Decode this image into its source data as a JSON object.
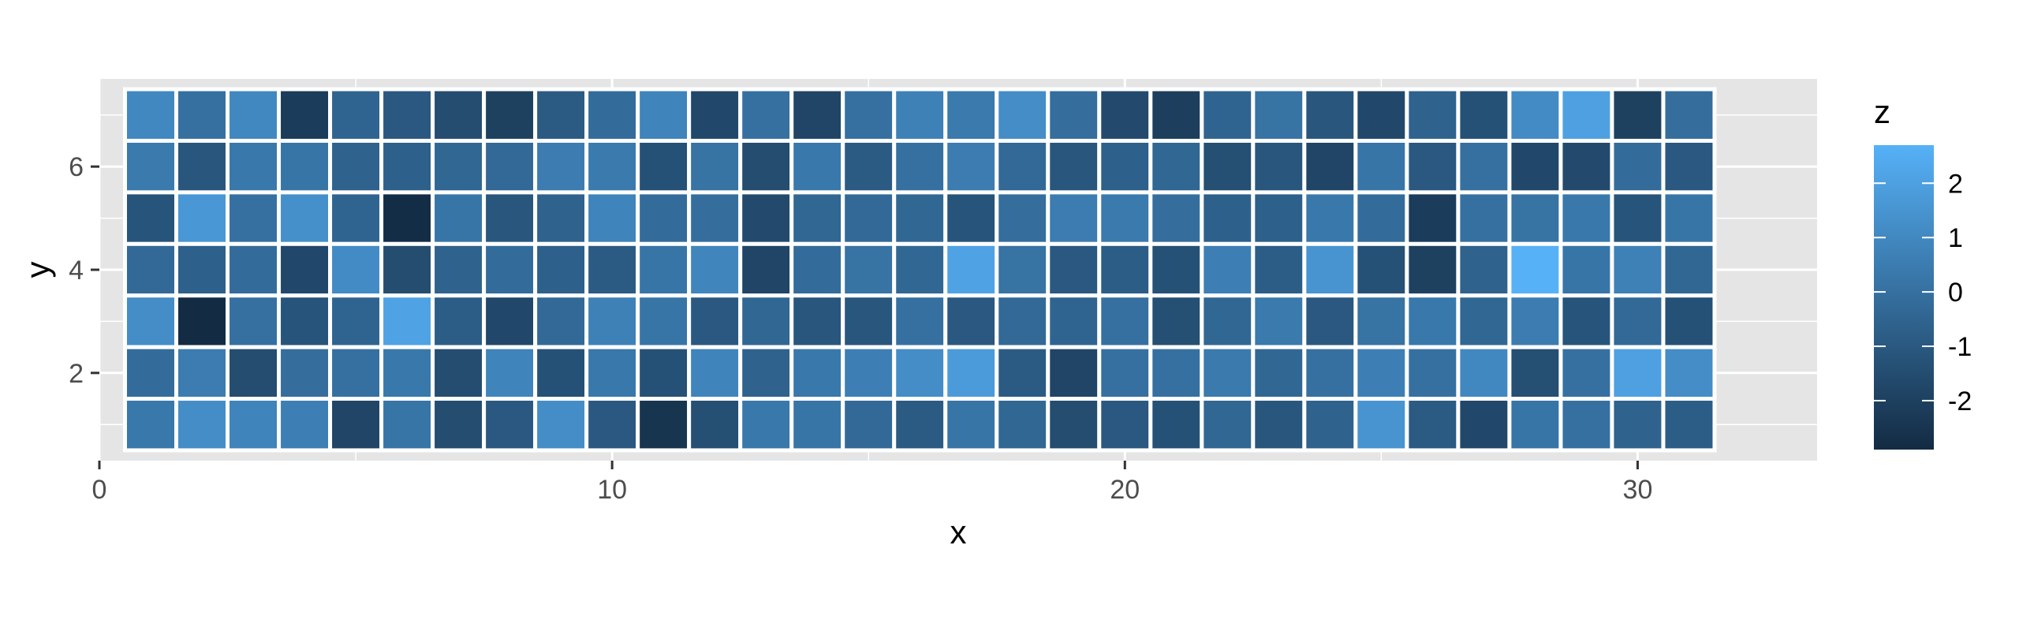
{
  "chart_data": {
    "type": "heatmap",
    "xlabel": "x",
    "ylabel": "y",
    "xlim": [
      0,
      33.5
    ],
    "ylim": [
      0.3,
      7.7
    ],
    "x_ticks": [
      0,
      10,
      20,
      30
    ],
    "y_ticks": [
      2,
      4,
      6
    ],
    "x_tick_labels": [
      "0",
      "10",
      "20",
      "30"
    ],
    "y_tick_labels": [
      "2",
      "4",
      "6"
    ],
    "x": [
      1,
      2,
      3,
      4,
      5,
      6,
      7,
      8,
      9,
      10,
      11,
      12,
      13,
      14,
      15,
      16,
      17,
      18,
      19,
      20,
      21,
      22,
      23,
      24,
      25,
      26,
      27,
      28,
      29,
      30,
      31
    ],
    "y": [
      7,
      6,
      5,
      4,
      3,
      2,
      1
    ],
    "z": [
      [
        1.0,
        0.0,
        1.0,
        -2.2,
        -0.5,
        -1.0,
        -1.5,
        -2.0,
        -0.9,
        -0.2,
        0.8,
        -1.7,
        0.0,
        -1.8,
        0.0,
        0.7,
        0.4,
        1.2,
        -0.1,
        -1.6,
        -2.1,
        -0.5,
        0.1,
        -1.1,
        -1.7,
        -0.6,
        -1.3,
        1.1,
        2.0,
        -2.0,
        -0.1
      ],
      [
        0.4,
        -1.1,
        0.3,
        0.2,
        -0.6,
        -0.7,
        -0.4,
        -0.3,
        0.5,
        0.4,
        -1.3,
        0.1,
        -1.5,
        0.3,
        -0.9,
        0.0,
        0.5,
        -0.3,
        -1.1,
        -0.7,
        -0.4,
        -1.4,
        -1.1,
        -1.8,
        0.2,
        -1.0,
        0.0,
        -1.7,
        -1.6,
        -0.2,
        -1.0
      ],
      [
        -1.2,
        1.6,
        0.0,
        1.3,
        -0.5,
        -2.8,
        0.2,
        -1.1,
        -0.6,
        0.8,
        -0.2,
        -0.1,
        -1.6,
        -0.4,
        -0.3,
        -0.4,
        -1.2,
        -0.1,
        0.5,
        0.4,
        -0.1,
        -0.7,
        -0.7,
        0.3,
        -0.2,
        -2.2,
        0.0,
        0.1,
        0.3,
        -1.2,
        0.2
      ],
      [
        -0.3,
        -0.7,
        -0.2,
        -1.7,
        1.1,
        -1.5,
        -0.6,
        -0.2,
        -0.7,
        -0.9,
        0.2,
        0.9,
        -1.8,
        -0.2,
        0.1,
        -0.4,
        2.1,
        0.1,
        -1.0,
        -0.8,
        -1.3,
        0.6,
        -0.8,
        1.5,
        -1.3,
        -2.0,
        -0.6,
        2.7,
        0.2,
        0.7,
        -0.4
      ],
      [
        1.2,
        -3.0,
        0.0,
        -1.2,
        -0.5,
        2.1,
        -0.8,
        -1.7,
        -0.3,
        0.7,
        0.2,
        -1.0,
        -0.4,
        -1.1,
        -1.1,
        0.0,
        -1.0,
        -0.3,
        -0.5,
        0.0,
        -1.4,
        -0.4,
        0.4,
        -1.0,
        0.1,
        0.3,
        -0.4,
        0.5,
        -1.2,
        -0.3,
        -1.3
      ],
      [
        -0.2,
        0.5,
        -1.5,
        -0.1,
        0.0,
        0.3,
        -1.5,
        0.8,
        -1.3,
        0.3,
        -1.3,
        0.8,
        -0.6,
        0.3,
        0.6,
        1.2,
        1.8,
        -0.9,
        -1.8,
        0.0,
        0.0,
        0.4,
        -0.4,
        0.0,
        0.6,
        0.0,
        1.0,
        -1.4,
        0.0,
        2.0,
        1.2
      ],
      [
        0.3,
        1.2,
        0.8,
        0.6,
        -1.8,
        0.2,
        -1.5,
        -1.0,
        1.2,
        -1.0,
        -2.5,
        -1.4,
        0.3,
        0.2,
        -0.3,
        -0.9,
        0.2,
        -0.4,
        -1.5,
        -1.0,
        -1.3,
        -0.4,
        -1.1,
        -0.6,
        1.5,
        -0.9,
        -1.7,
        0.2,
        0.0,
        -0.6,
        -0.8
      ]
    ],
    "legend": {
      "title": "z",
      "range": [
        -2.9,
        2.7
      ],
      "breaks": [
        2,
        1,
        0,
        -1,
        -2
      ],
      "break_labels": [
        "2",
        "1",
        "0",
        "-1",
        "-2"
      ],
      "low_color": "#132b43",
      "high_color": "#56b1f7",
      "placement": "right"
    },
    "panel_background": "#e5e5e5",
    "grid_color": "#ffffff",
    "grid": true
  }
}
